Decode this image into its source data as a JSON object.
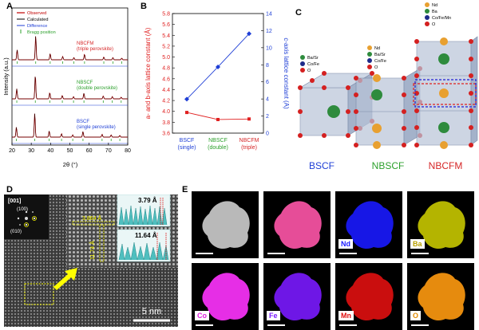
{
  "panels": {
    "a": "A",
    "b": "B",
    "c": "C",
    "d": "D",
    "e": "E"
  },
  "panel_a": {
    "legend": {
      "observed": "Observed",
      "calculated": "Calculated",
      "difference": "Difference",
      "bragg": "Bragg position"
    },
    "samples": [
      {
        "name": "NBCFM",
        "sub": "(triple perovskite)",
        "color": "#d62728"
      },
      {
        "name": "NBSCF",
        "sub": "(double perovskite)",
        "color": "#2ca02c"
      },
      {
        "name": "BSCF",
        "sub": "(single perovskite)",
        "color": "#1f3fd6"
      }
    ],
    "ylabel": "Intensity (a.u.)",
    "xlabel": "2θ (°)",
    "xticks": [
      "20",
      "30",
      "40",
      "50",
      "60",
      "70",
      "80"
    ]
  },
  "chart_data": [
    {
      "type": "line",
      "panel": "A",
      "title": "",
      "xlabel": "2θ (°)",
      "ylabel": "Intensity (a.u.)",
      "xlim": [
        20,
        80
      ],
      "series": [
        {
          "name": "NBCFM",
          "peaks_2theta": [
            22.7,
            32.3,
            39.8,
            46.3,
            52.1,
            57.6,
            67.6,
            72.3,
            76.9
          ]
        },
        {
          "name": "NBSCF",
          "peaks_2theta": [
            22.5,
            32.1,
            39.6,
            46.1,
            51.9,
            57.3,
            67.3,
            72.0,
            76.6
          ]
        },
        {
          "name": "BSCF",
          "peaks_2theta": [
            22.3,
            31.8,
            39.3,
            45.7,
            51.5,
            56.8,
            66.7,
            71.4,
            75.9
          ]
        }
      ]
    },
    {
      "type": "line",
      "panel": "B",
      "title": "",
      "categories": [
        "BSCF",
        "NBSCF",
        "NBCFM"
      ],
      "category_sub": [
        "(single)",
        "(double)",
        "(triple)"
      ],
      "category_colors": [
        "#1f3fd6",
        "#2ca02c",
        "#d62728"
      ],
      "ylabel_left": "a- and b-axis lattice constant (Å)",
      "ylabel_right": "c-axis lattice constant (Å)",
      "ylim_left": [
        3.6,
        5.8
      ],
      "ylim_right": [
        0,
        14
      ],
      "yticks_left": [
        "3.6",
        "3.8",
        "4.0",
        "4.2",
        "4.4",
        "4.6",
        "4.8",
        "5.0",
        "5.2",
        "5.4",
        "5.6",
        "5.8"
      ],
      "yticks_right": [
        "0",
        "2",
        "4",
        "6",
        "8",
        "10",
        "12",
        "14"
      ],
      "series": [
        {
          "name": "a/b-axis",
          "axis": "left",
          "color": "#e02020",
          "values": [
            3.98,
            3.85,
            3.86
          ]
        },
        {
          "name": "c-axis",
          "axis": "right",
          "color": "#1f3fd6",
          "values": [
            3.98,
            7.75,
            11.64
          ]
        }
      ]
    }
  ],
  "panel_c": {
    "structures": [
      {
        "name": "BSCF",
        "color": "#1f3fd6",
        "legend": [
          {
            "label": "Ba/Sr",
            "color": "#2e8b3d"
          },
          {
            "label": "Co/Fe",
            "color": "#1d2a8a"
          },
          {
            "label": "O",
            "color": "#d42020"
          }
        ]
      },
      {
        "name": "NBSCF",
        "color": "#2ca02c",
        "legend": [
          {
            "label": "Nd",
            "color": "#e8a030"
          },
          {
            "label": "Ba/Sr",
            "color": "#2e8b3d"
          },
          {
            "label": "Co/Fe",
            "color": "#1d2a8a"
          },
          {
            "label": "O",
            "color": "#d42020"
          }
        ]
      },
      {
        "name": "NBCFM",
        "color": "#d62728",
        "legend": [
          {
            "label": "Nd",
            "color": "#e8a030"
          },
          {
            "label": "Ba",
            "color": "#2e8b3d"
          },
          {
            "label": "Co/Fe/Mn",
            "color": "#1d2a8a"
          },
          {
            "label": "O",
            "color": "#d42020"
          }
        ]
      }
    ]
  },
  "panel_d": {
    "zone_axis": "[001]",
    "fft_spot_1": "(100)",
    "fft_spot_2": "(010)",
    "d_spacing_1": "3.864 Å",
    "d_spacing_2": "11.74 Å",
    "profile_1": "3.79 Å",
    "profile_2": "11.64 Å",
    "scale": "5 nm"
  },
  "panel_e": {
    "tiles": [
      {
        "label": "",
        "color": "#d9d9d9"
      },
      {
        "label": "",
        "color": "#ff55a8"
      },
      {
        "label": "Nd",
        "color": "#1a1aff",
        "label_color": "#1a1aff"
      },
      {
        "label": "Ba",
        "color": "#c8c800",
        "label_color": "#b8a000"
      },
      {
        "label": "Co",
        "color": "#ff33ff",
        "label_color": "#e020e0"
      },
      {
        "label": "Fe",
        "color": "#7a1aff",
        "label_color": "#7a1aff"
      },
      {
        "label": "Mn",
        "color": "#e01010",
        "label_color": "#e01010"
      },
      {
        "label": "O",
        "color": "#ff9a10",
        "label_color": "#e08a00"
      }
    ]
  }
}
